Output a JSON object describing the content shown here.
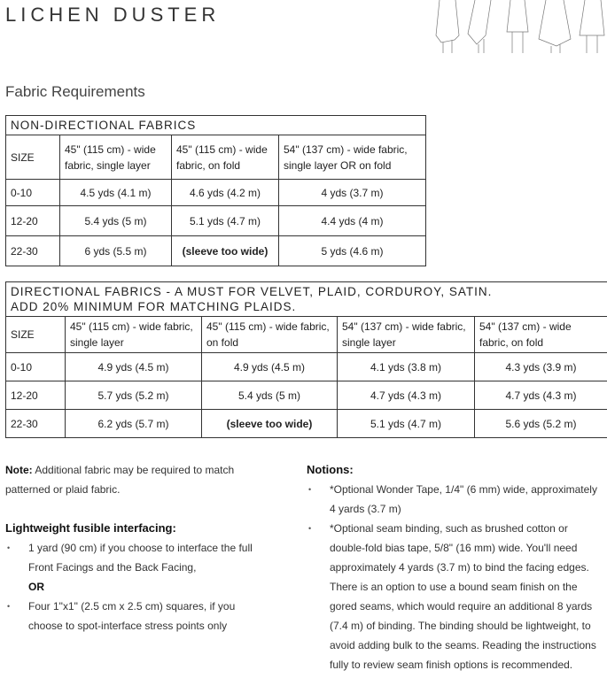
{
  "title": "LICHEN DUSTER",
  "subtitle": "Fabric Requirements",
  "table1": {
    "header": "NON-DIRECTIONAL FABRICS",
    "columns": [
      "SIZE",
      "45\" (115 cm) - wide fabric, single layer",
      "45\" (115 cm) - wide fabric, on fold",
      "54\" (137 cm) - wide fabric, single layer OR on fold"
    ],
    "rows": [
      [
        "0-10",
        "4.5 yds (4.1 m)",
        "4.6 yds (4.2 m)",
        "4 yds (3.7 m)"
      ],
      [
        "12-20",
        "5.4 yds (5 m)",
        "5.1 yds (4.7 m)",
        "4.4 yds (4 m)"
      ],
      [
        "22-30",
        "6 yds (5.5 m)",
        "(sleeve too wide)",
        "5 yds (4.6 m)"
      ]
    ]
  },
  "table2": {
    "header1": "DIRECTIONAL FABRICS - A MUST FOR VELVET, PLAID, CORDUROY, SATIN.",
    "header2": "ADD 20% MINIMUM FOR MATCHING PLAIDS.",
    "columns": [
      "SIZE",
      "45\" (115 cm) - wide fabric, single layer",
      "45\" (115 cm) - wide fabric, on fold",
      "54\" (137 cm) - wide fabric, single layer",
      "54\" (137 cm) - wide fabric, on fold"
    ],
    "rows": [
      [
        "0-10",
        "4.9 yds (4.5 m)",
        "4.9 yds (4.5 m)",
        "4.1 yds (3.8 m)",
        "4.3 yds (3.9 m)"
      ],
      [
        "12-20",
        "5.7 yds (5.2 m)",
        "5.4 yds (5 m)",
        "4.7 yds (4.3 m)",
        "4.7 yds (4.3 m)"
      ],
      [
        "22-30",
        "6.2 yds (5.7 m)",
        "(sleeve too wide)",
        "5.1 yds (4.7 m)",
        "5.6 yds (5.2 m)"
      ]
    ]
  },
  "note": {
    "label": "Note:",
    "text": " Additional fabric may be required to match patterned or plaid fabric."
  },
  "interfacing": {
    "heading": "Lightweight fusible interfacing:",
    "item1": "1 yard (90 cm) if you choose to interface the full Front Facings and the Back Facing,",
    "or": "OR",
    "item2": "Four 1\"x1\" (2.5 cm x 2.5 cm) squares, if you choose to spot-interface stress points only"
  },
  "notions": {
    "heading": "Notions:",
    "items": [
      "*Optional Wonder Tape, 1/4\" (6 mm) wide, approximately 4 yards (3.7 m)",
      "*Optional seam binding, such as brushed cotton or double-fold bias tape, 5/8\" (16 mm) wide. You'll need approximately 4 yards (3.7 m) to bind the facing edges. There is an option to use a bound seam finish on the gored seams, which would require an additional 8 yards (7.4 m) of binding. The binding should be lightweight, to avoid adding bulk to the seams. Reading the instructions fully to review seam finish options is recommended."
    ]
  }
}
